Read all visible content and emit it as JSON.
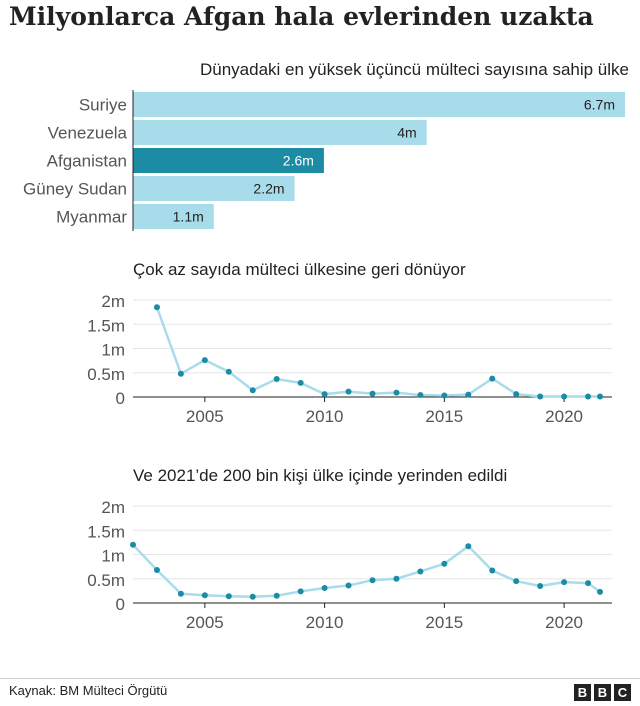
{
  "title": "Milyonlarca Afgan hala evlerinden uzakta",
  "footer": {
    "source": "Kaynak: BM Mülteci Örgütü",
    "logo_text": "BBC"
  },
  "colors": {
    "bar": "#a8dcea",
    "bar_highlight": "#1b8ca4",
    "line": "#a8dcea",
    "point": "#1b8ca4",
    "axis": "#222222",
    "grid": "#e6e6e6"
  },
  "chart_data": [
    {
      "type": "bar",
      "orientation": "horizontal",
      "title": "Dünyadaki en yüksek üçüncü mülteci sayısına sahip ülke",
      "categories": [
        "Suriye",
        "Venezuela",
        "Afganistan",
        "Güney Sudan",
        "Myanmar"
      ],
      "values": [
        6.7,
        4,
        2.6,
        2.2,
        1.1
      ],
      "value_labels": [
        "6.7m",
        "4m",
        "2.6m",
        "2.2m",
        "1.1m"
      ],
      "highlight": "Afganistan",
      "xlim": [
        0,
        6.7
      ]
    },
    {
      "type": "line",
      "title": "Çok az sayıda mülteci ülkesine geri dönüyor",
      "x": [
        2003,
        2004,
        2005,
        2006,
        2007,
        2008,
        2009,
        2010,
        2011,
        2012,
        2013,
        2014,
        2015,
        2016,
        2017,
        2018,
        2019,
        2020,
        2021,
        2021.5
      ],
      "values": [
        1.85,
        0.48,
        0.76,
        0.52,
        0.14,
        0.37,
        0.29,
        0.06,
        0.11,
        0.07,
        0.09,
        0.04,
        0.03,
        0.05,
        0.38,
        0.06,
        0.01,
        0.01,
        0.01,
        0.01
      ],
      "yticks": [
        0,
        0.5,
        1,
        1.5,
        2
      ],
      "ytick_labels": [
        "0",
        "0.5m",
        "1m",
        "1.5m",
        "2m"
      ],
      "xticks": [
        2005,
        2010,
        2015,
        2020
      ],
      "xtick_labels": [
        "2005",
        "2010",
        "2015",
        "2020"
      ],
      "ylim": [
        0,
        2
      ],
      "xlim": [
        2002,
        2022
      ]
    },
    {
      "type": "line",
      "title": "Ve 2021’de 200 bin kişi ülke içinde yerinden edildi",
      "x": [
        2002,
        2003,
        2004,
        2005,
        2006,
        2007,
        2008,
        2009,
        2010,
        2011,
        2012,
        2013,
        2014,
        2015,
        2016,
        2017,
        2018,
        2019,
        2020,
        2021,
        2021.5
      ],
      "values": [
        1.2,
        0.68,
        0.19,
        0.16,
        0.14,
        0.13,
        0.15,
        0.24,
        0.31,
        0.36,
        0.47,
        0.5,
        0.65,
        0.81,
        1.17,
        0.67,
        0.45,
        0.35,
        0.43,
        0.41,
        0.23
      ],
      "yticks": [
        0,
        0.5,
        1,
        1.5,
        2
      ],
      "ytick_labels": [
        "0",
        "0.5m",
        "1m",
        "1.5m",
        "2m"
      ],
      "xticks": [
        2005,
        2010,
        2015,
        2020
      ],
      "xtick_labels": [
        "2005",
        "2010",
        "2015",
        "2020"
      ],
      "ylim": [
        0,
        2
      ],
      "xlim": [
        2002,
        2022
      ]
    }
  ]
}
